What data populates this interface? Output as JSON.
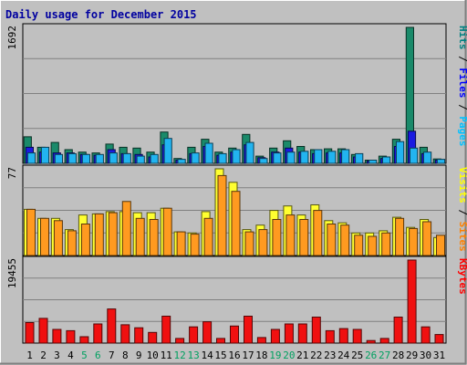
{
  "chart_data": {
    "type": "bar",
    "title": "Daily usage for December 2015",
    "days": [
      "1",
      "2",
      "3",
      "4",
      "5",
      "6",
      "7",
      "8",
      "9",
      "10",
      "11",
      "12",
      "13",
      "14",
      "15",
      "16",
      "17",
      "18",
      "19",
      "20",
      "21",
      "22",
      "23",
      "24",
      "25",
      "26",
      "27",
      "28",
      "29",
      "30",
      "31"
    ],
    "weekend_days": [
      "5",
      "6",
      "12",
      "13",
      "19",
      "20",
      "26",
      "27"
    ],
    "panels": [
      {
        "id": "hits",
        "y_max_label": "1692",
        "y_max": 1692,
        "side_labels": [
          "Pages",
          "Files",
          "Hits"
        ],
        "side_label_colors": [
          "#00c0ff",
          "#0000ff",
          "#008080"
        ],
        "series": [
          {
            "name": "Hits",
            "color": "#1a8a6a",
            "values": [
              330,
              200,
              260,
              170,
              140,
              130,
              240,
              200,
              190,
              140,
              390,
              60,
              200,
              300,
              140,
              190,
              360,
              90,
              190,
              280,
              210,
              170,
              180,
              180,
              110,
              40,
              90,
              300,
              1692,
              200,
              55
            ]
          },
          {
            "name": "Files",
            "color": "#1a1ae0",
            "values": [
              200,
              140,
              130,
              130,
              110,
              100,
              170,
              120,
              110,
              80,
              230,
              40,
              120,
              210,
              100,
              140,
              230,
              70,
              140,
              190,
              140,
              120,
              130,
              130,
              80,
              30,
              60,
              210,
              400,
              120,
              40
            ]
          },
          {
            "name": "Pages",
            "color": "#22b4f0",
            "values": [
              130,
              200,
              110,
              120,
              110,
              110,
              130,
              120,
              90,
              110,
              310,
              50,
              130,
              250,
              120,
              170,
              260,
              60,
              130,
              140,
              150,
              170,
              150,
              170,
              120,
              40,
              80,
              270,
              190,
              140,
              50
            ]
          }
        ]
      },
      {
        "id": "visits",
        "y_max_label": "77",
        "y_max": 77,
        "side_labels": [
          "Sites",
          "Visits"
        ],
        "side_label_colors": [
          "#ff8000",
          "#ffff00"
        ],
        "series": [
          {
            "name": "Visits",
            "color": "#ffff30",
            "values": [
              41,
              33,
              33,
              23,
              36,
              37,
              39,
              39,
              38,
              38,
              42,
              21,
              20,
              39,
              77,
              65,
              23,
              27,
              40,
              44,
              36,
              45,
              31,
              29,
              20,
              20,
              22,
              34,
              25,
              32,
              16
            ]
          },
          {
            "name": "Sites",
            "color": "#ff9a20",
            "values": [
              41,
              33,
              31,
              22,
              28,
              37,
              38,
              48,
              33,
              32,
              42,
              21,
              19,
              33,
              71,
              57,
              21,
              23,
              32,
              36,
              32,
              40,
              28,
              27,
              18,
              17,
              20,
              33,
              24,
              30,
              18
            ]
          }
        ]
      },
      {
        "id": "kbytes",
        "y_max_label": "19455",
        "y_max": 19455,
        "side_labels": [
          "KBytes"
        ],
        "side_label_colors": [
          "#ff0000"
        ],
        "series": [
          {
            "name": "KBytes",
            "color": "#f01010",
            "values": [
              4800,
              5800,
              3200,
              2900,
              1500,
              4500,
              8000,
              4300,
              3600,
              2500,
              6300,
              1100,
              3800,
              5000,
              1100,
              4000,
              6300,
              1300,
              3200,
              4500,
              4500,
              6100,
              2900,
              3400,
              3200,
              600,
              1100,
              6100,
              19455,
              3800,
              2000
            ]
          }
        ]
      }
    ]
  }
}
